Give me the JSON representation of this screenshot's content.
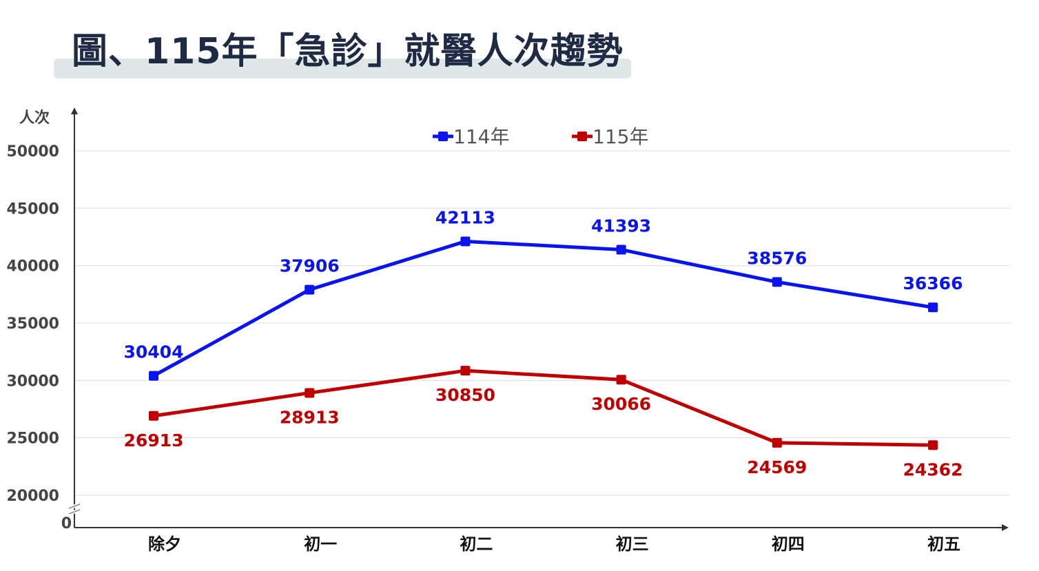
{
  "title": "圖、115年「急診」就醫人次趨勢",
  "chart_data": {
    "type": "line",
    "title": "圖、115年「急診」就醫人次趨勢",
    "ylabel": "人次",
    "xlabel": "",
    "categories": [
      "除夕",
      "初一",
      "初二",
      "初三",
      "初四",
      "初五"
    ],
    "yticks": [
      20000,
      25000,
      30000,
      35000,
      40000,
      45000,
      50000
    ],
    "ylim": [
      20000,
      50000
    ],
    "axis_origin_label": "0",
    "axis_break": true,
    "grid": true,
    "legend_position": "top-center",
    "series": [
      {
        "name": "114年",
        "color": "#0a14f0",
        "label_position": "above",
        "values": [
          30404,
          37906,
          42113,
          41393,
          38576,
          36366
        ]
      },
      {
        "name": "115年",
        "color": "#c00000",
        "label_position": "below",
        "values": [
          26913,
          28913,
          30850,
          30066,
          24569,
          24362
        ]
      }
    ]
  }
}
